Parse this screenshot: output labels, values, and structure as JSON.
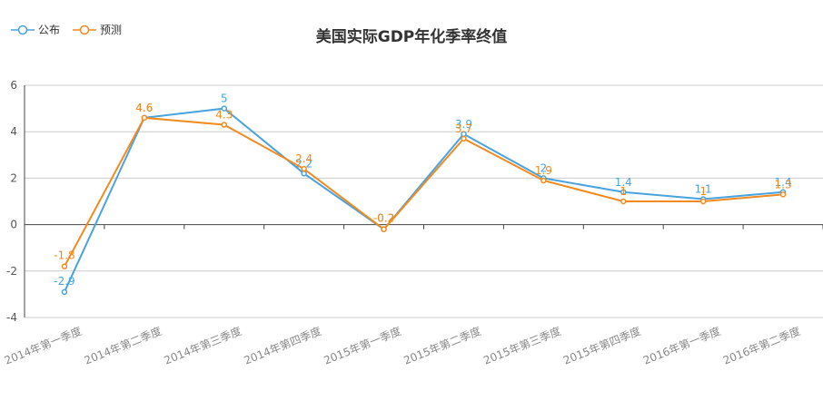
{
  "chart_data": {
    "type": "line",
    "title": "美国实际GDP年化季率终值",
    "categories": [
      "2014年第一季度",
      "2014年第二季度",
      "2014年第三季度",
      "2014年第四季度",
      "2015年第一季度",
      "2015年第二季度",
      "2015年第三季度",
      "2015年第四季度",
      "2016年第一季度",
      "2016年第二季度"
    ],
    "series": [
      {
        "name": "公布",
        "color": "#4aa3df",
        "values": [
          -2.9,
          4.6,
          5,
          2.2,
          -0.2,
          3.9,
          2,
          1.4,
          1.1,
          1.4
        ]
      },
      {
        "name": "预测",
        "color": "#f28a1f",
        "values": [
          -1.8,
          4.6,
          4.3,
          2.4,
          -0.2,
          3.7,
          1.9,
          1,
          1,
          1.3
        ]
      }
    ],
    "ylim": [
      -4,
      6
    ],
    "yticks": [
      6,
      4,
      2,
      0,
      -2,
      -4
    ],
    "grid": true,
    "legend": "top-left"
  }
}
